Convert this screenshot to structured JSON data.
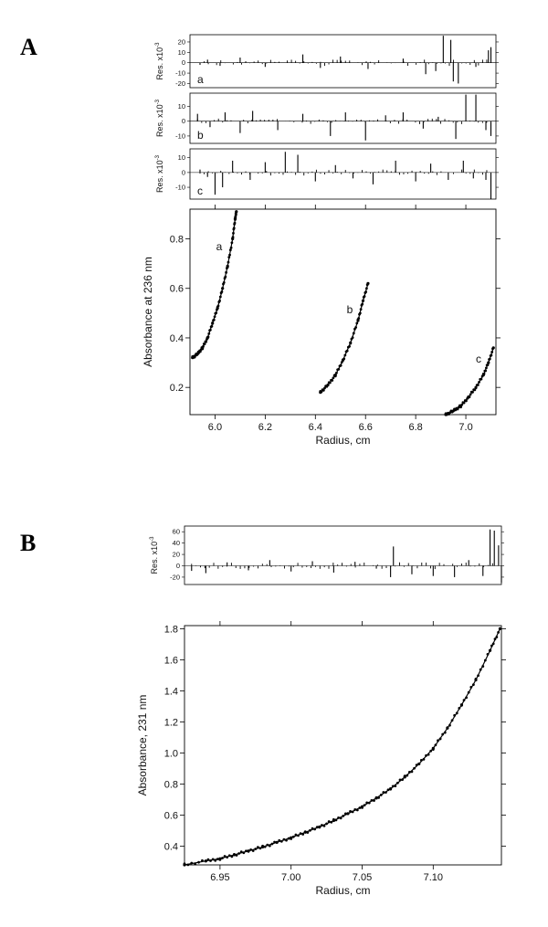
{
  "chart_data": [
    {
      "panel": "A",
      "type": "scatter",
      "xlabel": "Radius, cm",
      "ylabel": "Absorbance at 236 nm",
      "xlim": [
        5.9,
        7.12
      ],
      "ylim": [
        0.09,
        0.92
      ],
      "xticks": [
        "6.0",
        "6.2",
        "6.4",
        "6.6",
        "6.8",
        "7.0"
      ],
      "yticks": [
        "0.2",
        "0.4",
        "0.6",
        "0.8"
      ],
      "series": [
        {
          "label": "a",
          "points": [
            [
              5.91,
              0.32
            ],
            [
              5.93,
              0.335
            ],
            [
              5.95,
              0.36
            ],
            [
              5.97,
              0.4
            ],
            [
              5.99,
              0.46
            ],
            [
              6.01,
              0.52
            ],
            [
              6.03,
              0.6
            ],
            [
              6.05,
              0.69
            ],
            [
              6.07,
              0.8
            ],
            [
              6.08,
              0.88
            ],
            [
              6.085,
              0.91
            ]
          ]
        },
        {
          "label": "b",
          "points": [
            [
              6.42,
              0.18
            ],
            [
              6.45,
              0.21
            ],
            [
              6.48,
              0.25
            ],
            [
              6.51,
              0.31
            ],
            [
              6.54,
              0.38
            ],
            [
              6.57,
              0.47
            ],
            [
              6.59,
              0.55
            ],
            [
              6.61,
              0.62
            ]
          ]
        },
        {
          "label": "c",
          "points": [
            [
              6.92,
              0.09
            ],
            [
              6.95,
              0.105
            ],
            [
              6.98,
              0.125
            ],
            [
              7.01,
              0.16
            ],
            [
              7.04,
              0.2
            ],
            [
              7.07,
              0.25
            ],
            [
              7.09,
              0.3
            ],
            [
              7.11,
              0.36
            ]
          ]
        }
      ],
      "residuals": [
        {
          "label": "a",
          "ylabel": "Res. x10",
          "exponent": "-3",
          "yticks": [
            "20",
            "10",
            "0",
            "-10",
            "-20"
          ],
          "ylim": [
            -24,
            27
          ],
          "spikes": [
            [
              5.94,
              -2
            ],
            [
              5.97,
              3
            ],
            [
              6.02,
              -3
            ],
            [
              6.1,
              5
            ],
            [
              6.2,
              -4
            ],
            [
              6.35,
              8
            ],
            [
              6.42,
              -5
            ],
            [
              6.5,
              6
            ],
            [
              6.61,
              -6
            ],
            [
              6.75,
              4
            ],
            [
              6.84,
              -11
            ],
            [
              6.88,
              -8
            ],
            [
              6.91,
              26
            ],
            [
              6.94,
              22
            ],
            [
              6.95,
              -18
            ],
            [
              6.97,
              -20
            ],
            [
              7.04,
              -4
            ],
            [
              7.09,
              12
            ],
            [
              7.1,
              15
            ]
          ]
        },
        {
          "label": "b",
          "ylabel": "Res. x10",
          "exponent": "-3",
          "yticks": [
            "10",
            "0",
            "-10"
          ],
          "ylim": [
            -15,
            19
          ],
          "spikes": [
            [
              5.93,
              5
            ],
            [
              5.98,
              -4
            ],
            [
              6.04,
              6
            ],
            [
              6.1,
              -8
            ],
            [
              6.15,
              7
            ],
            [
              6.25,
              -6
            ],
            [
              6.35,
              5
            ],
            [
              6.46,
              -10
            ],
            [
              6.52,
              6
            ],
            [
              6.6,
              -13
            ],
            [
              6.68,
              4
            ],
            [
              6.75,
              6
            ],
            [
              6.83,
              -5
            ],
            [
              6.89,
              3
            ],
            [
              6.96,
              -12
            ],
            [
              7.0,
              18
            ],
            [
              7.04,
              18
            ],
            [
              7.08,
              -6
            ],
            [
              7.1,
              -10
            ]
          ]
        },
        {
          "label": "c",
          "ylabel": "Res. x10",
          "exponent": "-3",
          "yticks": [
            "10",
            "0",
            "-10"
          ],
          "ylim": [
            -18,
            16
          ],
          "spikes": [
            [
              5.94,
              2
            ],
            [
              5.97,
              -3
            ],
            [
              6.0,
              -15
            ],
            [
              6.03,
              -10
            ],
            [
              6.07,
              8
            ],
            [
              6.14,
              -5
            ],
            [
              6.2,
              7
            ],
            [
              6.28,
              14
            ],
            [
              6.33,
              12
            ],
            [
              6.4,
              -6
            ],
            [
              6.48,
              5
            ],
            [
              6.55,
              -4
            ],
            [
              6.63,
              -8
            ],
            [
              6.72,
              8
            ],
            [
              6.8,
              -6
            ],
            [
              6.86,
              6
            ],
            [
              6.93,
              -5
            ],
            [
              6.99,
              8
            ],
            [
              7.03,
              -4
            ],
            [
              7.08,
              -5
            ],
            [
              7.1,
              -18
            ]
          ]
        }
      ]
    },
    {
      "panel": "B",
      "type": "scatter",
      "xlabel": "Radius, cm",
      "ylabel": "Absorbance, 231 nm",
      "xlim": [
        6.925,
        7.148
      ],
      "ylim": [
        0.28,
        1.82
      ],
      "xticks": [
        "6.95",
        "7.00",
        "7.05",
        "7.10"
      ],
      "yticks": [
        "0.4",
        "0.6",
        "0.8",
        "1.0",
        "1.2",
        "1.4",
        "1.6",
        "1.8"
      ],
      "series": [
        {
          "label": "",
          "points": [
            [
              6.925,
              0.28
            ],
            [
              6.94,
              0.305
            ],
            [
              6.95,
              0.32
            ],
            [
              6.96,
              0.345
            ],
            [
              6.97,
              0.37
            ],
            [
              6.98,
              0.395
            ],
            [
              6.99,
              0.425
            ],
            [
              7.0,
              0.455
            ],
            [
              7.01,
              0.49
            ],
            [
              7.02,
              0.525
            ],
            [
              7.03,
              0.565
            ],
            [
              7.04,
              0.61
            ],
            [
              7.05,
              0.655
            ],
            [
              7.06,
              0.71
            ],
            [
              7.07,
              0.77
            ],
            [
              7.08,
              0.845
            ],
            [
              7.09,
              0.93
            ],
            [
              7.1,
              1.03
            ],
            [
              7.11,
              1.16
            ],
            [
              7.12,
              1.31
            ],
            [
              7.13,
              1.47
            ],
            [
              7.14,
              1.66
            ],
            [
              7.147,
              1.8
            ]
          ]
        }
      ],
      "residuals": [
        {
          "label": "",
          "ylabel": "Res. x10",
          "exponent": "-3",
          "yticks": [
            "60",
            "40",
            "20",
            "0",
            "-20"
          ],
          "ylim": [
            -33,
            70
          ],
          "spikes": [
            [
              6.93,
              -9
            ],
            [
              6.94,
              -13
            ],
            [
              6.955,
              6
            ],
            [
              6.97,
              -8
            ],
            [
              6.985,
              10
            ],
            [
              7.0,
              -10
            ],
            [
              7.015,
              8
            ],
            [
              7.03,
              -12
            ],
            [
              7.045,
              7
            ],
            [
              7.06,
              -5
            ],
            [
              7.07,
              -20
            ],
            [
              7.072,
              34
            ],
            [
              7.085,
              -15
            ],
            [
              7.1,
              -18
            ],
            [
              7.115,
              -20
            ],
            [
              7.125,
              10
            ],
            [
              7.135,
              -18
            ],
            [
              7.14,
              64
            ],
            [
              7.143,
              62
            ],
            [
              7.146,
              36
            ],
            [
              7.148,
              -30
            ]
          ]
        }
      ]
    }
  ]
}
